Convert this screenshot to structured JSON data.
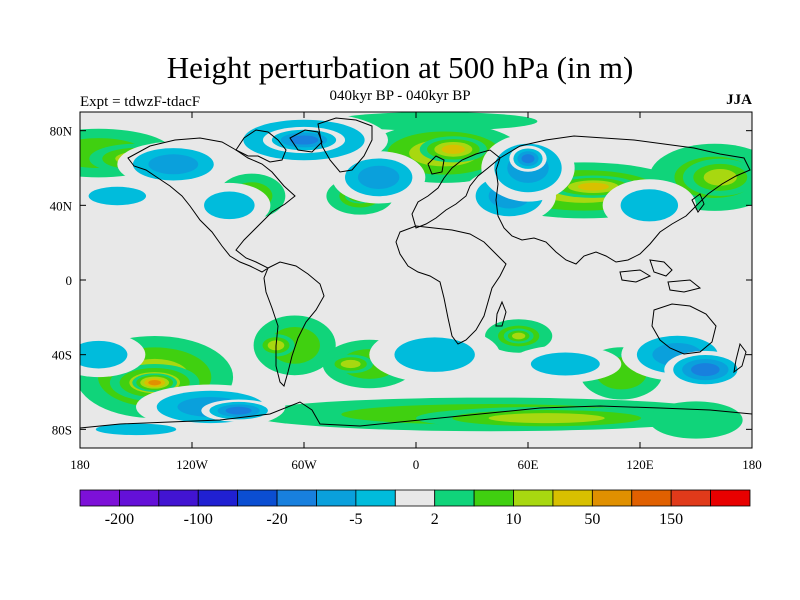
{
  "title": "Height perturbation at 500 hPa (in m)",
  "subtitle": "040kyr BP - 040kyr BP",
  "experiment_label": "Expt = tdwzF-tdacF",
  "season": "JJA",
  "chart_data": {
    "type": "heatmap",
    "projection": "equirectangular",
    "lon_range": [
      -180,
      180
    ],
    "lat_range": [
      -90,
      90
    ],
    "x_ticks": [
      {
        "lon": -180,
        "label": "180"
      },
      {
        "lon": -120,
        "label": "120W"
      },
      {
        "lon": -60,
        "label": "60W"
      },
      {
        "lon": 0,
        "label": "0"
      },
      {
        "lon": 60,
        "label": "60E"
      },
      {
        "lon": 120,
        "label": "120E"
      },
      {
        "lon": 180,
        "label": "180"
      }
    ],
    "y_ticks": [
      {
        "lat": 80,
        "label": "80N"
      },
      {
        "lat": 40,
        "label": "40N"
      },
      {
        "lat": 0,
        "label": "0"
      },
      {
        "lat": -40,
        "label": "40S"
      },
      {
        "lat": -80,
        "label": "80S"
      }
    ],
    "colorbar": {
      "colors": [
        "#7d10d8",
        "#6410d8",
        "#4214d2",
        "#2020d2",
        "#0b4ed2",
        "#1880de",
        "#0aa0dc",
        "#00bcdc",
        "#e8e8e8",
        "#10d47a",
        "#40d010",
        "#a8d810",
        "#d8c000",
        "#e09000",
        "#e06000",
        "#e03a1a",
        "#e80000"
      ],
      "labels": [
        {
          "boundary": 1,
          "text": "-200"
        },
        {
          "boundary": 3,
          "text": "-100"
        },
        {
          "boundary": 5,
          "text": "-20"
        },
        {
          "boundary": 7,
          "text": "-5"
        },
        {
          "boundary": 9,
          "text": "2"
        },
        {
          "boundary": 11,
          "text": "10"
        },
        {
          "boundary": 13,
          "text": "50"
        },
        {
          "boundary": 15,
          "text": "150"
        }
      ]
    },
    "anomalies": [
      {
        "lon": 15,
        "lat": 68,
        "rlon": 42,
        "rlat": 16,
        "level": 11
      },
      {
        "lon": 20,
        "lat": 70,
        "rlon": 18,
        "rlat": 7,
        "level": 12
      },
      {
        "lon": 90,
        "lat": 48,
        "rlon": 55,
        "rlat": 15,
        "level": 11
      },
      {
        "lon": 95,
        "lat": 50,
        "rlon": 24,
        "rlat": 6,
        "level": 12
      },
      {
        "lon": 160,
        "lat": 55,
        "rlon": 35,
        "rlat": 18,
        "level": 10
      },
      {
        "lon": 163,
        "lat": 55,
        "rlon": 20,
        "rlat": 10,
        "level": 11
      },
      {
        "lon": -170,
        "lat": 68,
        "rlon": 40,
        "rlat": 13,
        "level": 10
      },
      {
        "lon": -150,
        "lat": 65,
        "rlon": 25,
        "rlat": 8,
        "level": 11
      },
      {
        "lon": -88,
        "lat": 45,
        "rlon": 18,
        "rlat": 12,
        "level": 10
      },
      {
        "lon": -30,
        "lat": 45,
        "rlon": 18,
        "rlat": 10,
        "level": 10
      },
      {
        "lon": -30,
        "lat": 45,
        "rlon": 8,
        "rlat": 4,
        "level": 12
      },
      {
        "lon": 10,
        "lat": 85,
        "rlon": 55,
        "rlat": 5,
        "level": 9
      },
      {
        "lon": -140,
        "lat": -52,
        "rlon": 42,
        "rlat": 22,
        "level": 11
      },
      {
        "lon": -140,
        "lat": -55,
        "rlon": 24,
        "rlat": 10,
        "level": 12
      },
      {
        "lon": -140,
        "lat": -55,
        "rlon": 12,
        "rlat": 5,
        "level": 13
      },
      {
        "lon": -65,
        "lat": -35,
        "rlon": 22,
        "rlat": 16,
        "level": 10
      },
      {
        "lon": -75,
        "lat": -35,
        "rlon": 10,
        "rlat": 6,
        "level": 11
      },
      {
        "lon": -25,
        "lat": -45,
        "rlon": 25,
        "rlat": 13,
        "level": 10
      },
      {
        "lon": -35,
        "lat": -45,
        "rlon": 12,
        "rlat": 5,
        "level": 11
      },
      {
        "lon": 55,
        "lat": -30,
        "rlon": 18,
        "rlat": 9,
        "level": 10
      },
      {
        "lon": 55,
        "lat": -30,
        "rlon": 8,
        "rlat": 4,
        "level": 11
      },
      {
        "lon": 40,
        "lat": -72,
        "rlon": 130,
        "rlat": 9,
        "level": 10
      },
      {
        "lon": 70,
        "lat": -74,
        "rlon": 70,
        "rlat": 6,
        "level": 11
      },
      {
        "lon": 110,
        "lat": -50,
        "rlon": 22,
        "rlat": 14,
        "level": 10
      },
      {
        "lon": 150,
        "lat": -75,
        "rlon": 25,
        "rlat": 10,
        "level": 9
      }
    ],
    "negative_anomalies": [
      {
        "lon": -130,
        "lat": 62,
        "rlon": 30,
        "rlat": 12,
        "level": 6
      },
      {
        "lon": -60,
        "lat": 75,
        "rlon": 45,
        "rlat": 15,
        "level": 6
      },
      {
        "lon": -60,
        "lat": 75,
        "rlon": 22,
        "rlat": 7,
        "level": 5
      },
      {
        "lon": -20,
        "lat": 55,
        "rlon": 25,
        "rlat": 14,
        "level": 6
      },
      {
        "lon": 50,
        "lat": 45,
        "rlon": 25,
        "rlat": 15,
        "level": 6
      },
      {
        "lon": 60,
        "lat": 60,
        "rlon": 25,
        "rlat": 18,
        "level": 6
      },
      {
        "lon": 60,
        "lat": 65,
        "rlon": 10,
        "rlat": 7,
        "level": 5
      },
      {
        "lon": 125,
        "lat": 40,
        "rlon": 25,
        "rlat": 14,
        "level": 7
      },
      {
        "lon": -160,
        "lat": 45,
        "rlon": 25,
        "rlat": 8,
        "level": 7
      },
      {
        "lon": -100,
        "lat": 40,
        "rlon": 22,
        "rlat": 12,
        "level": 7
      },
      {
        "lon": -170,
        "lat": -40,
        "rlon": 25,
        "rlat": 12,
        "level": 7
      },
      {
        "lon": -110,
        "lat": -68,
        "rlon": 40,
        "rlat": 12,
        "level": 6
      },
      {
        "lon": -95,
        "lat": -70,
        "rlon": 20,
        "rlat": 6,
        "level": 5
      },
      {
        "lon": 10,
        "lat": -40,
        "rlon": 35,
        "rlat": 15,
        "level": 7
      },
      {
        "lon": 140,
        "lat": -40,
        "rlon": 30,
        "rlat": 14,
        "level": 6
      },
      {
        "lon": 155,
        "lat": -48,
        "rlon": 22,
        "rlat": 10,
        "level": 5
      },
      {
        "lon": 80,
        "lat": -45,
        "rlon": 30,
        "rlat": 10,
        "level": 7
      },
      {
        "lon": -150,
        "lat": -80,
        "rlon": 35,
        "rlat": 5,
        "level": 7
      }
    ]
  }
}
